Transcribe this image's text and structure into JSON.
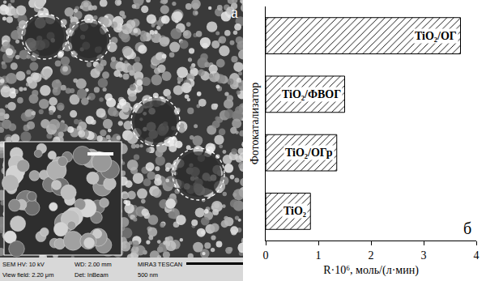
{
  "image": {
    "label": "а",
    "info": [
      [
        "SEM HV: 10 kV",
        "WD: 2.00 mm",
        "MIRA3 TESCAN"
      ],
      [
        "View field: 2.20 μm",
        "Det: InBeam",
        "500 nm"
      ]
    ]
  },
  "chart_data": {
    "type": "bar",
    "orientation": "horizontal",
    "categories": [
      "TiO₂",
      "TiO₂/ОГр",
      "TiO₂/ФВОГ",
      "TiO₂/ОГ"
    ],
    "values": [
      0.85,
      1.35,
      1.5,
      3.7
    ],
    "color": "#000000",
    "xlabel": "R·10⁶, моль/(л·мин)",
    "ylabel": "Фотокатализатор",
    "xlim": [
      0,
      4
    ],
    "xticks": [
      0,
      1,
      2,
      3,
      4
    ],
    "tick_labels": "x",
    "panel_label": "б",
    "grid": false
  }
}
